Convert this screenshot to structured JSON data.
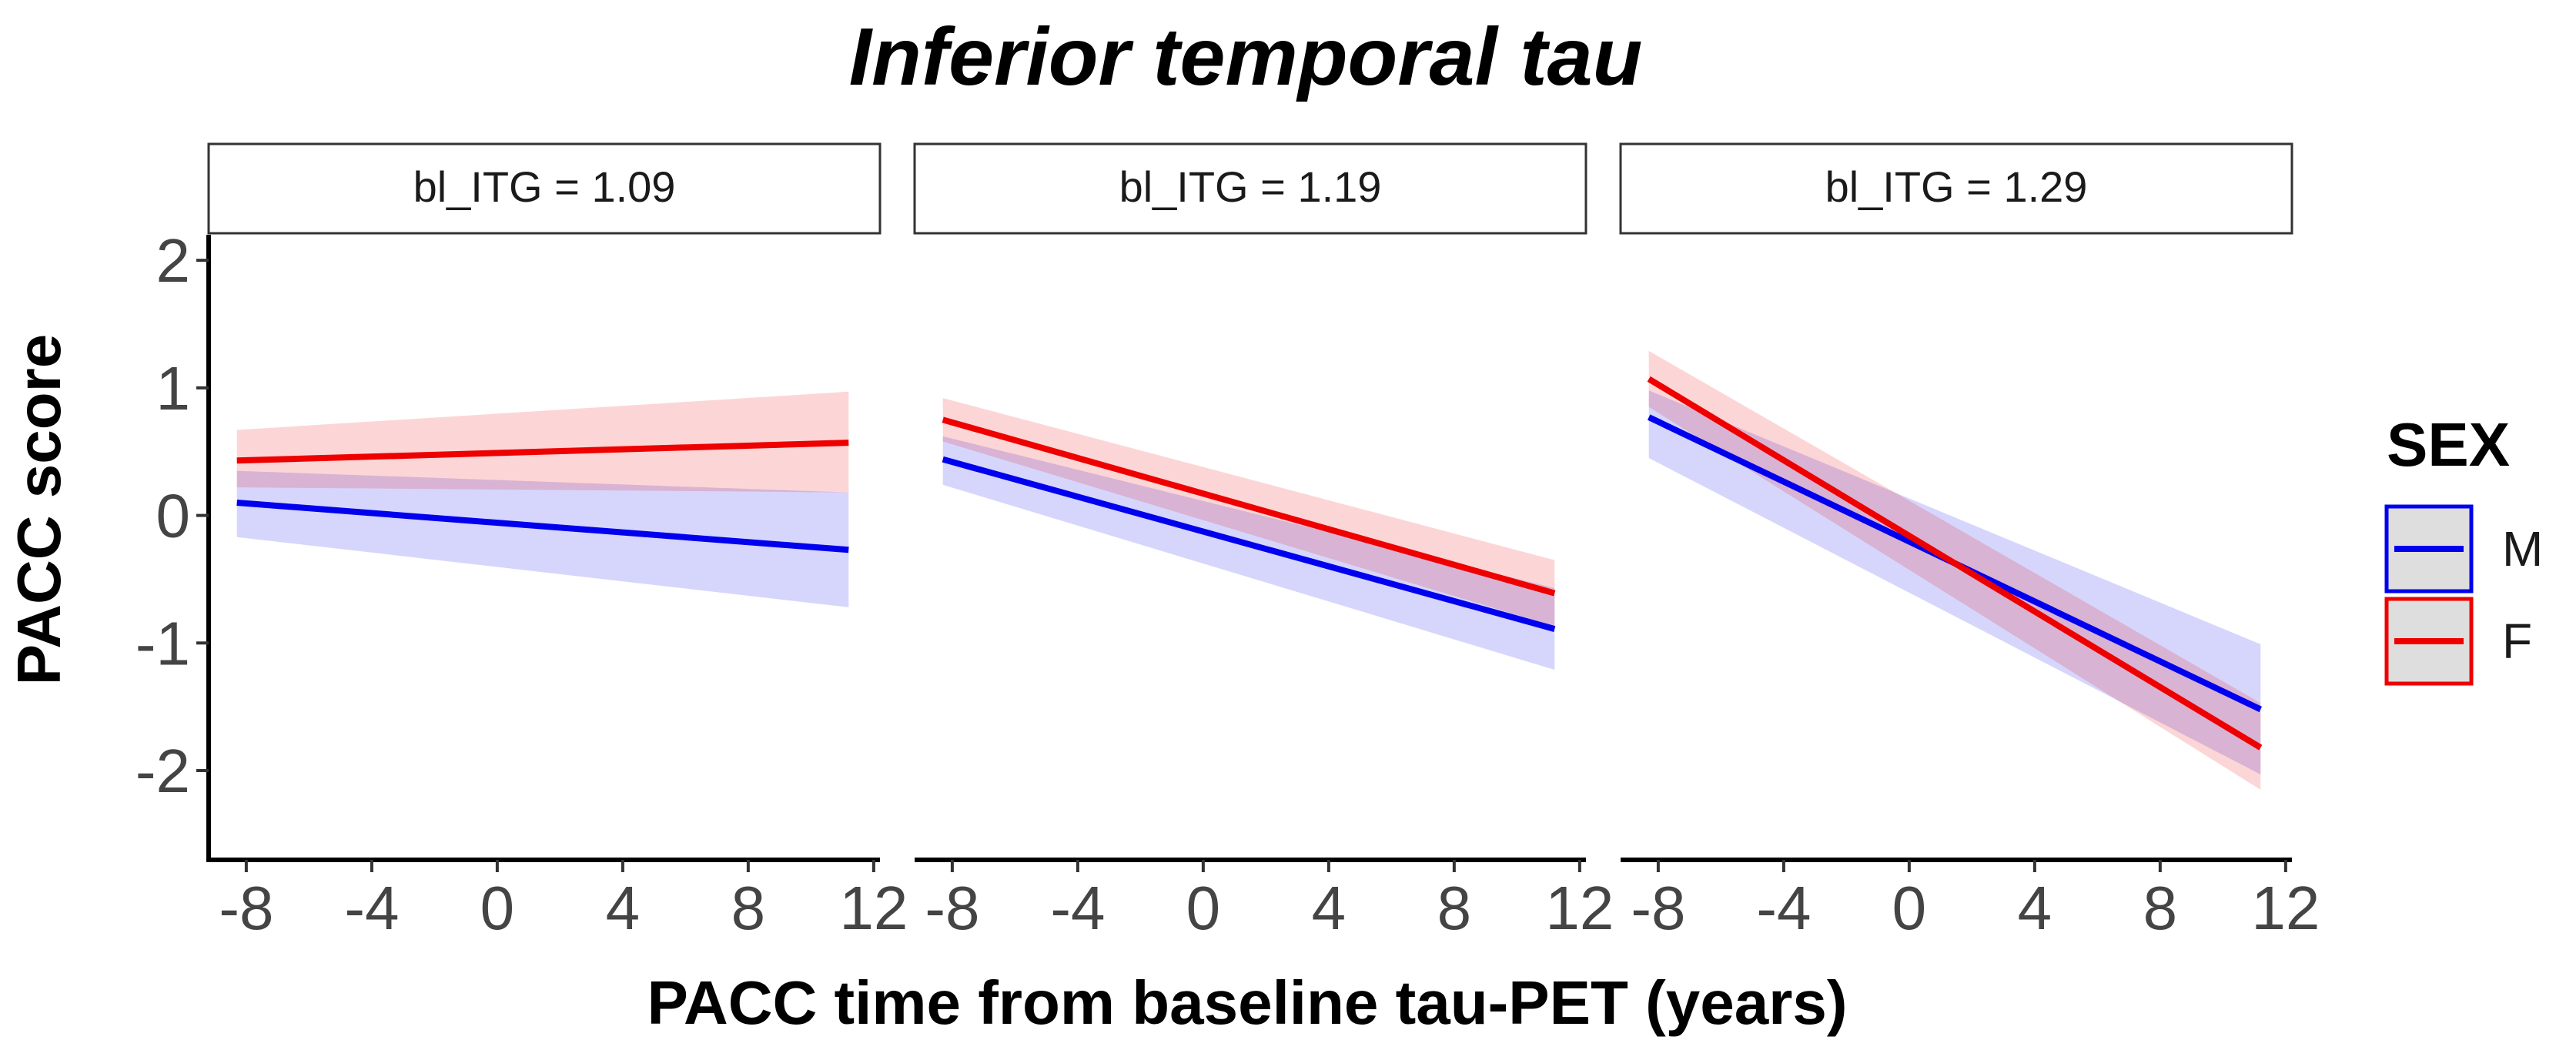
{
  "chart_data": {
    "type": "line",
    "title": "Inferior temporal tau",
    "xlabel": "PACC time from baseline tau-PET (years)",
    "ylabel": "PACC score",
    "xlim": [
      -9.2,
      12.2
    ],
    "ylim": [
      -2.7,
      2.2
    ],
    "xticks": [
      "-8",
      "-4",
      "0",
      "4",
      "8",
      "12"
    ],
    "xtick_values": [
      -8,
      -4,
      0,
      4,
      8,
      12
    ],
    "yticks": [
      "2",
      "1",
      "0",
      "-1",
      "-2"
    ],
    "ytick_values": [
      2,
      1,
      0,
      -1,
      -2
    ],
    "grid": false,
    "legend": {
      "title": "SEX",
      "position": "right",
      "entries": [
        {
          "label": "M",
          "color": "#0000ee"
        },
        {
          "label": "F",
          "color": "#ee0000"
        }
      ]
    },
    "panels": [
      {
        "label": "bl_ITG = 1.09",
        "series": [
          {
            "name": "M",
            "color": "#0000ee",
            "x": [
              -8.3,
              11.2
            ],
            "y": [
              0.1,
              -0.27
            ],
            "ci_upper": [
              0.35,
              0.18
            ],
            "ci_lower": [
              -0.17,
              -0.72
            ]
          },
          {
            "name": "F",
            "color": "#ee0000",
            "x": [
              -8.3,
              11.2
            ],
            "y": [
              0.43,
              0.57
            ],
            "ci_upper": [
              0.67,
              0.97
            ],
            "ci_lower": [
              0.22,
              0.18
            ]
          }
        ]
      },
      {
        "label": "bl_ITG = 1.19",
        "series": [
          {
            "name": "M",
            "color": "#0000ee",
            "x": [
              -8.3,
              11.2
            ],
            "y": [
              0.44,
              -0.89
            ],
            "ci_upper": [
              0.62,
              -0.57
            ],
            "ci_lower": [
              0.24,
              -1.21
            ]
          },
          {
            "name": "F",
            "color": "#ee0000",
            "x": [
              -8.3,
              11.2
            ],
            "y": [
              0.75,
              -0.61
            ],
            "ci_upper": [
              0.92,
              -0.35
            ],
            "ci_lower": [
              0.58,
              -0.87
            ]
          }
        ]
      },
      {
        "label": "bl_ITG = 1.29",
        "series": [
          {
            "name": "M",
            "color": "#0000ee",
            "x": [
              -8.3,
              11.2
            ],
            "y": [
              0.77,
              -1.52
            ],
            "ci_upper": [
              0.98,
              -1.01
            ],
            "ci_lower": [
              0.45,
              -2.03
            ]
          },
          {
            "name": "F",
            "color": "#ee0000",
            "x": [
              -8.3,
              11.2
            ],
            "y": [
              1.07,
              -1.82
            ],
            "ci_upper": [
              1.29,
              -1.47
            ],
            "ci_lower": [
              0.85,
              -2.15
            ]
          }
        ]
      }
    ]
  }
}
